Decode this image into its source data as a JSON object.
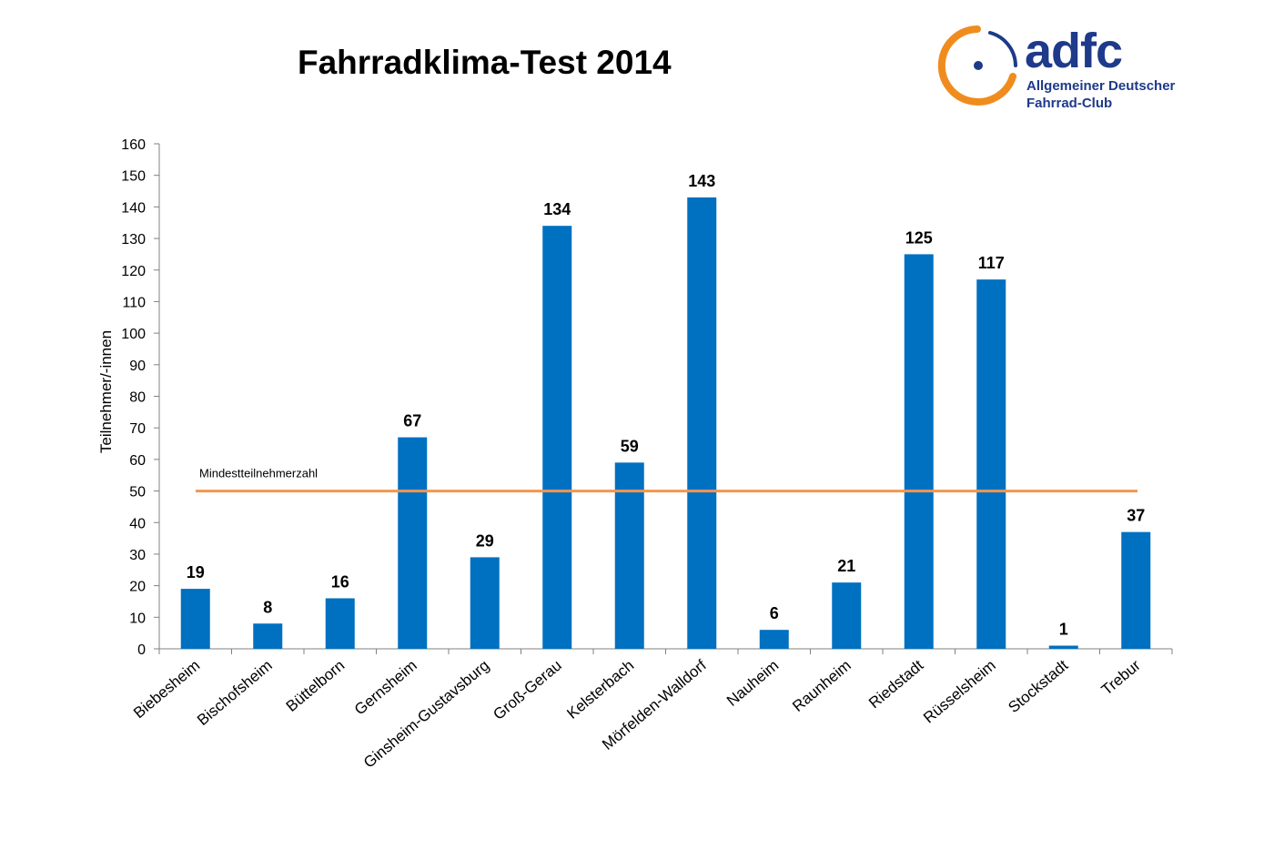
{
  "logo": {
    "wordmark": "adfc",
    "line1": "Allgemeiner Deutscher",
    "line2": "Fahrrad-Club",
    "colors": {
      "ring": "#f08c1e",
      "text": "#1e3a8a"
    }
  },
  "chart_data": {
    "type": "bar",
    "title": "Fahrradklima-Test 2014",
    "ylabel": "Teilnehmer/-innen",
    "xlabel": "",
    "ylim": [
      0,
      160
    ],
    "yticks": [
      0,
      10,
      20,
      30,
      40,
      50,
      60,
      70,
      80,
      90,
      100,
      110,
      120,
      130,
      140,
      150,
      160
    ],
    "grid": false,
    "categories": [
      "Biebesheim",
      "Bischofsheim",
      "Büttelborn",
      "Gernsheim",
      "Ginsheim-Gustavsburg",
      "Groß-Gerau",
      "Kelsterbach",
      "Mörfelden-Walldorf",
      "Nauheim",
      "Raunheim",
      "Riedstadt",
      "Rüsselsheim",
      "Stockstadt",
      "Trebur"
    ],
    "values": [
      19,
      8,
      16,
      67,
      29,
      134,
      59,
      143,
      6,
      21,
      125,
      117,
      1,
      37
    ],
    "data_labels": true,
    "bar_color": "#0070c0",
    "reference_line": {
      "value": 50,
      "label": "Mindestteilnehmerzahl",
      "color": "#f4964c"
    }
  }
}
